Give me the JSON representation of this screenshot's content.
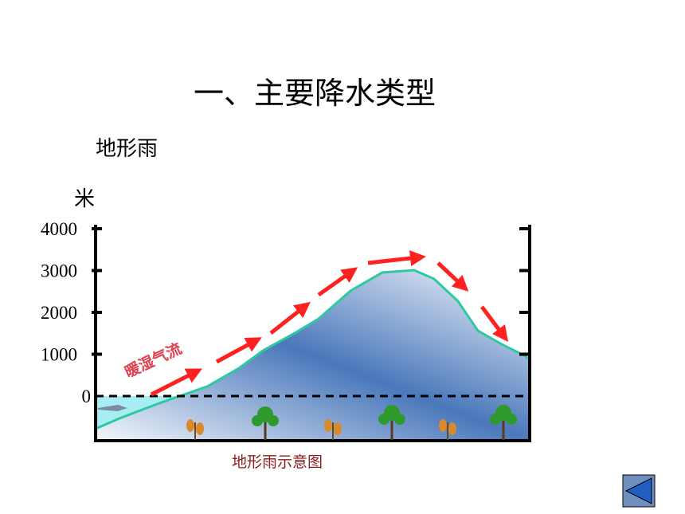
{
  "header": {
    "title": "一、主要降水类型",
    "subtitle": "地形雨"
  },
  "diagram": {
    "axis_unit": "米",
    "ticks": [
      0,
      1000,
      2000,
      3000,
      4000
    ],
    "air_label": "暖湿气流",
    "caption": "地形雨示意图"
  }
}
